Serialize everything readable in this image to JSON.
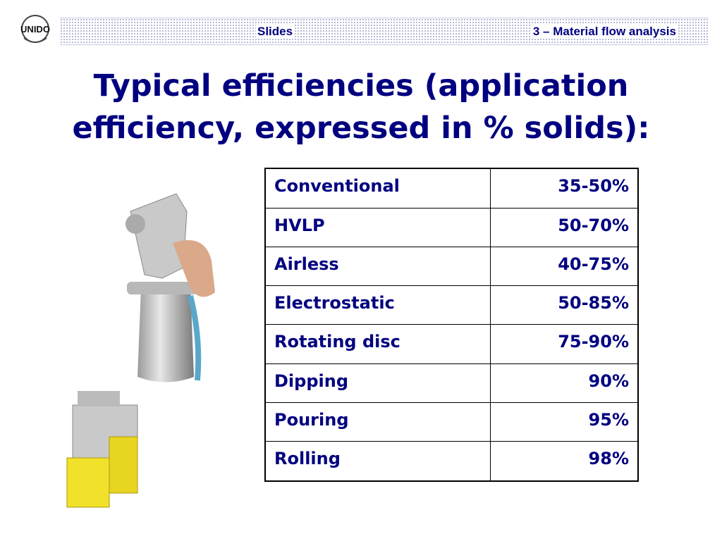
{
  "header": {
    "logo": "UNIDO",
    "left": "Slides",
    "right": "3 – Material flow analysis"
  },
  "title": "Typical efficiencies (application efficiency, expressed in % solids):",
  "table": {
    "rows": [
      [
        "Conventional",
        "35-50%"
      ],
      [
        "HVLP",
        "50-70%"
      ],
      [
        "Airless",
        "40-75%"
      ],
      [
        "Electrostatic",
        "50-85%"
      ],
      [
        "Rotating disc",
        "75-90%"
      ],
      [
        "Dipping",
        "90%"
      ],
      [
        "Pouring",
        "95%"
      ],
      [
        "Rolling",
        "98%"
      ]
    ]
  }
}
